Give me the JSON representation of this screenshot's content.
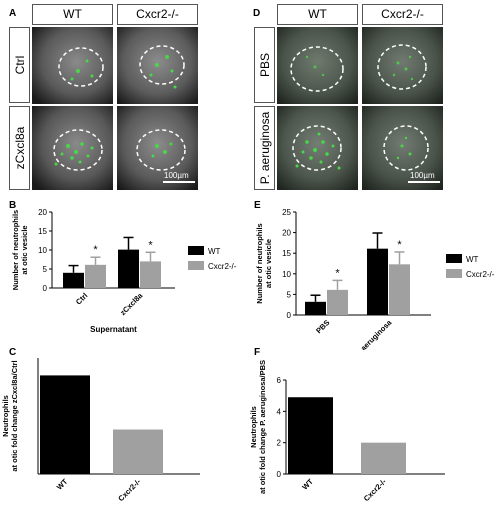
{
  "panels": {
    "A": {
      "letter": "A",
      "columns": [
        "WT",
        "Cxcr2-/-"
      ],
      "rows": [
        "Ctrl",
        "zCxcl8a"
      ],
      "scale_bar": "100µm"
    },
    "D": {
      "letter": "D",
      "columns": [
        "WT",
        "Cxcr2-/-"
      ],
      "rows": [
        "PBS",
        "P. aeruginosa"
      ],
      "scale_bar": "100µm"
    }
  },
  "colors": {
    "wt": "#000000",
    "cxcr2": "#a0a0a0",
    "neutrophil": "#49d649"
  },
  "chart_data": [
    {
      "panel": "B",
      "type": "bar",
      "categories": [
        "Ctrl",
        "zCxcl8a"
      ],
      "xlabel": "Supernatant",
      "ylabel": "Number of neutrophils at otic vesicle",
      "ylim": [
        0,
        20
      ],
      "yticks": [
        "0",
        "5",
        "10",
        "15",
        "20"
      ],
      "series": [
        {
          "name": "WT",
          "values": [
            4.0,
            10.1
          ],
          "errors": [
            1.9,
            3.2
          ]
        },
        {
          "name": "Cxcr2-/-",
          "values": [
            6.1,
            7.0
          ],
          "errors": [
            2.0,
            2.4
          ]
        }
      ],
      "significance": [
        "*",
        "*"
      ],
      "legend": "right"
    },
    {
      "panel": "E",
      "type": "bar",
      "categories": [
        "PBS",
        "P. aeruginosa"
      ],
      "xlabel": "",
      "ylabel": "Number of neutrophils at otic vesicle",
      "ylim": [
        0,
        25
      ],
      "yticks": [
        "0",
        "5",
        "10",
        "15",
        "20",
        "25"
      ],
      "series": [
        {
          "name": "WT",
          "values": [
            3.2,
            16.1
          ],
          "errors": [
            1.6,
            3.8
          ]
        },
        {
          "name": "Cxcr2-/-",
          "values": [
            6.1,
            12.3
          ],
          "errors": [
            2.3,
            3.0
          ]
        }
      ],
      "significance": [
        "*",
        "*"
      ],
      "legend": "right"
    },
    {
      "panel": "C",
      "type": "bar",
      "categories": [
        "WT",
        "Cxcr2-/-"
      ],
      "ylabel": "Neutrophils at otic fold change zCxcl8a/Ctrl",
      "ylim": [
        0,
        3
      ],
      "yticks": [],
      "values": [
        2.55,
        1.15
      ]
    },
    {
      "panel": "F",
      "type": "bar",
      "categories": [
        "WT",
        "Cxcr2-/-"
      ],
      "ylabel": "Neutrophils at otic fold change P. aeruginosa/PBS",
      "ylim": [
        0,
        6
      ],
      "yticks": [
        "0",
        "2",
        "4",
        "6"
      ],
      "values": [
        4.9,
        2.0
      ]
    }
  ]
}
